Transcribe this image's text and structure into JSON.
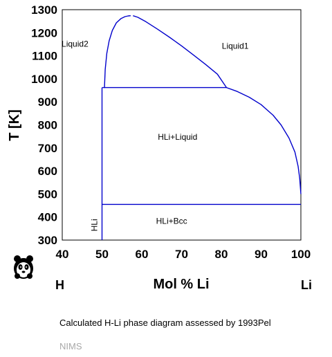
{
  "chart_data": {
    "type": "line",
    "xlabel": "Mol % Li",
    "ylabel": "T [K]",
    "xlim": [
      40,
      100
    ],
    "ylim": [
      300,
      1300
    ],
    "x_ticks": [
      40,
      50,
      60,
      70,
      80,
      90,
      100
    ],
    "y_ticks": [
      300,
      400,
      500,
      600,
      700,
      800,
      900,
      1000,
      1100,
      1200,
      1300
    ],
    "grid": false,
    "left_component": "H",
    "right_component": "Li",
    "regions": [
      {
        "label": "Liquid2",
        "x": 43.2,
        "y": 1140
      },
      {
        "label": "Liquid1",
        "x": 83.5,
        "y": 1130
      },
      {
        "label": "HLi+Liquid",
        "x": 69.0,
        "y": 735
      },
      {
        "label": "HLi+Bcc",
        "x": 67.5,
        "y": 370
      },
      {
        "label": "HLi",
        "x": 48.8,
        "y": 365,
        "vertical": true
      }
    ],
    "series": [
      {
        "x": [
          50.6,
          50.8,
          51.2,
          51.8,
          52.6,
          53.6,
          54.8,
          55.8,
          56.6,
          57.2
        ],
        "y": [
          960,
          1040,
          1110,
          1165,
          1210,
          1243,
          1262,
          1270,
          1273,
          1274
        ]
      },
      {
        "x": [
          57.8,
          59,
          61,
          64,
          67,
          70,
          73,
          76,
          79,
          81.3
        ],
        "y": [
          1274,
          1267,
          1248,
          1215,
          1180,
          1143,
          1103,
          1063,
          1020,
          962
        ]
      },
      {
        "x": [
          81.3,
          84,
          87,
          90,
          93,
          95,
          97,
          98.5,
          99.3,
          99.7,
          100
        ],
        "y": [
          962,
          945,
          920,
          888,
          842,
          800,
          743,
          682,
          620,
          568,
          500
        ]
      },
      {
        "x": [
          50,
          81.3
        ],
        "y": [
          962,
          962
        ]
      },
      {
        "x": [
          50,
          100
        ],
        "y": [
          455,
          455
        ]
      },
      {
        "x": [
          50,
          50
        ],
        "y": [
          300,
          962
        ]
      }
    ],
    "color": "#0000cc"
  },
  "caption": "Calculated H-Li phase diagram assessed by 1993Pel",
  "credit": "NIMS",
  "logo_icon": "panda-logo-icon"
}
